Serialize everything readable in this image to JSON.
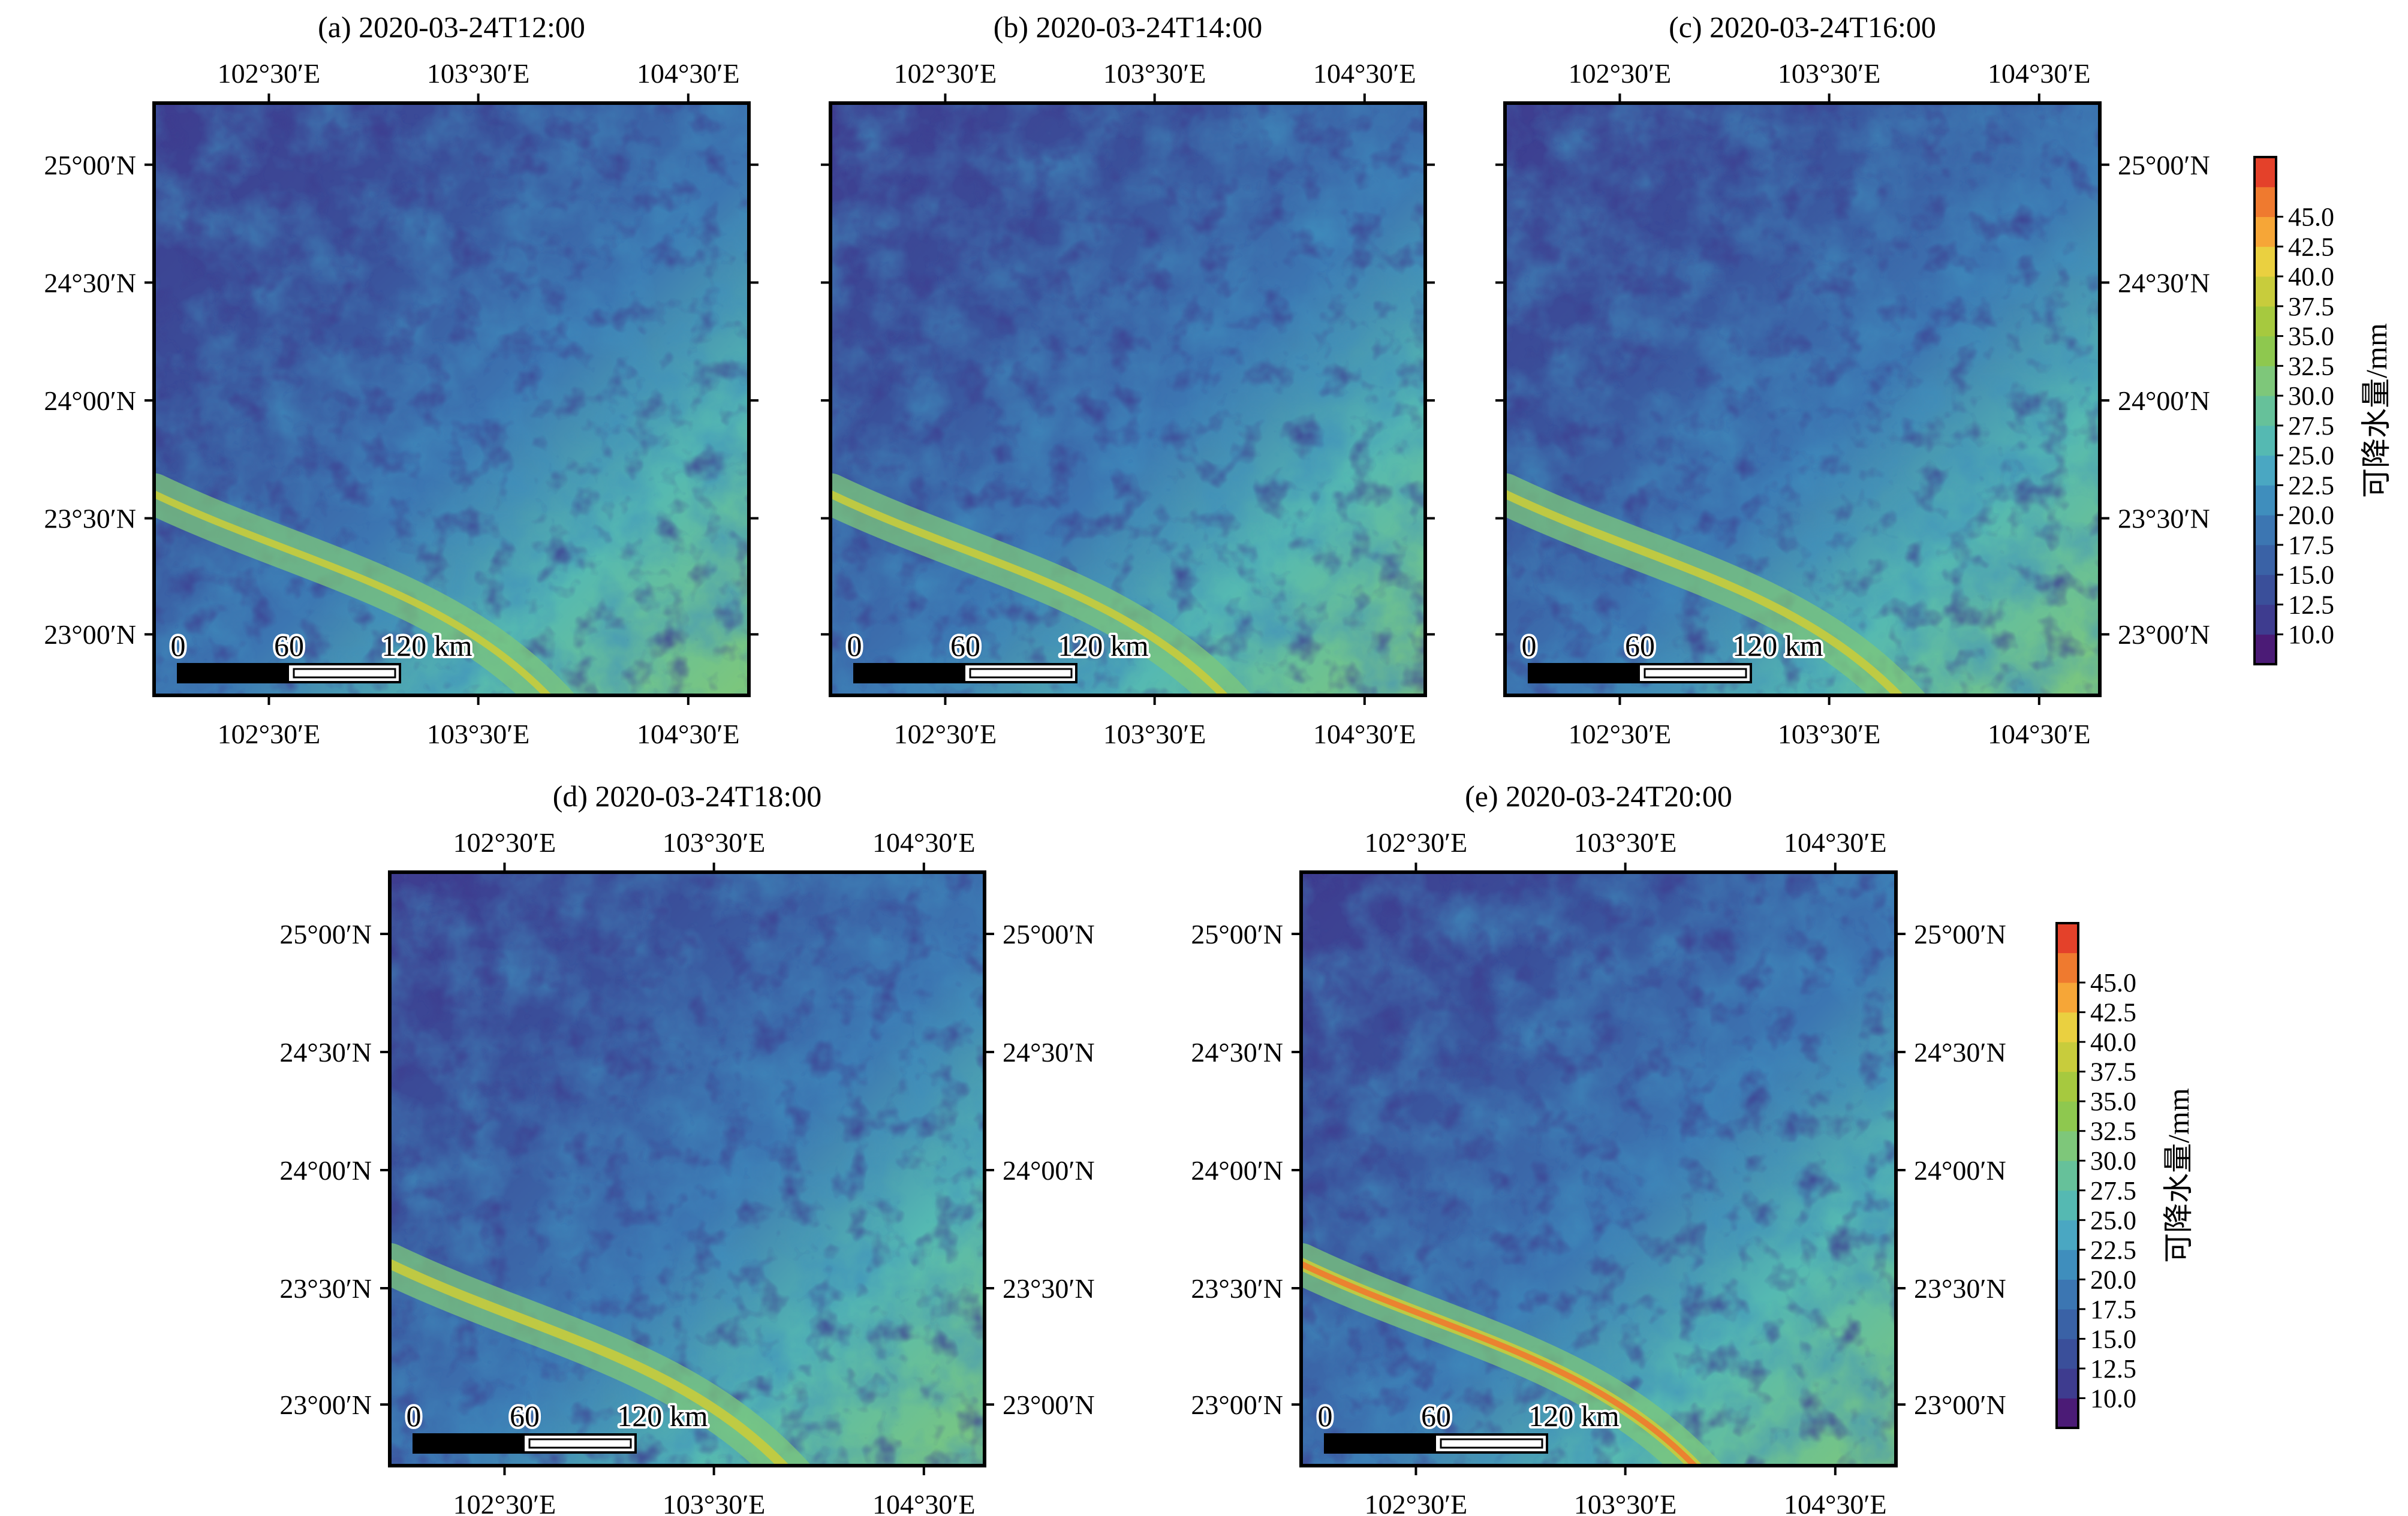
{
  "figure": {
    "panels": [
      {
        "title": "(a) 2020-03-24T12:00",
        "lon_labels_top": true,
        "lon_labels_bottom": true,
        "lat_labels_left": true,
        "lat_labels_right": false,
        "hot_band": 0.55
      },
      {
        "title": "(b) 2020-03-24T14:00",
        "lon_labels_top": true,
        "lon_labels_bottom": true,
        "lat_labels_left": false,
        "lat_labels_right": false,
        "hot_band": 0.6
      },
      {
        "title": "(c) 2020-03-24T16:00",
        "lon_labels_top": true,
        "lon_labels_bottom": true,
        "lat_labels_left": false,
        "lat_labels_right": true,
        "hot_band": 0.65
      },
      {
        "title": "(d) 2020-03-24T18:00",
        "lon_labels_top": true,
        "lon_labels_bottom": true,
        "lat_labels_left": true,
        "lat_labels_right": true,
        "hot_band": 0.75
      },
      {
        "title": "(e) 2020-03-24T20:00",
        "lon_labels_top": true,
        "lon_labels_bottom": true,
        "lat_labels_left": true,
        "lat_labels_right": true,
        "hot_band": 0.95
      }
    ],
    "lon_tick_labels": [
      "102°30′E",
      "103°30′E",
      "104°30′E"
    ],
    "lat_tick_labels": [
      "25°00′N",
      "24°30′N",
      "24°00′N",
      "23°30′N",
      "23°00′N"
    ],
    "scale_bar": {
      "labels": [
        "0",
        "60",
        "120 km"
      ]
    },
    "colorbar": {
      "title": "可降水量/mm",
      "tick_labels": [
        "10.0",
        "12.5",
        "15.0",
        "17.5",
        "20.0",
        "22.5",
        "25.0",
        "27.5",
        "30.0",
        "32.5",
        "35.0",
        "37.5",
        "40.0",
        "42.5",
        "45.0"
      ],
      "colors": [
        "#4b1b76",
        "#3e3c8f",
        "#3a4f9a",
        "#3a62a6",
        "#3c76b2",
        "#3f8ebd",
        "#4aa7c2",
        "#55b9b2",
        "#66c19a",
        "#7ec77a",
        "#8ec84f",
        "#a6c93f",
        "#c8cc3c",
        "#ead040",
        "#f6a637",
        "#ef7a2f",
        "#e4412a"
      ]
    }
  }
}
